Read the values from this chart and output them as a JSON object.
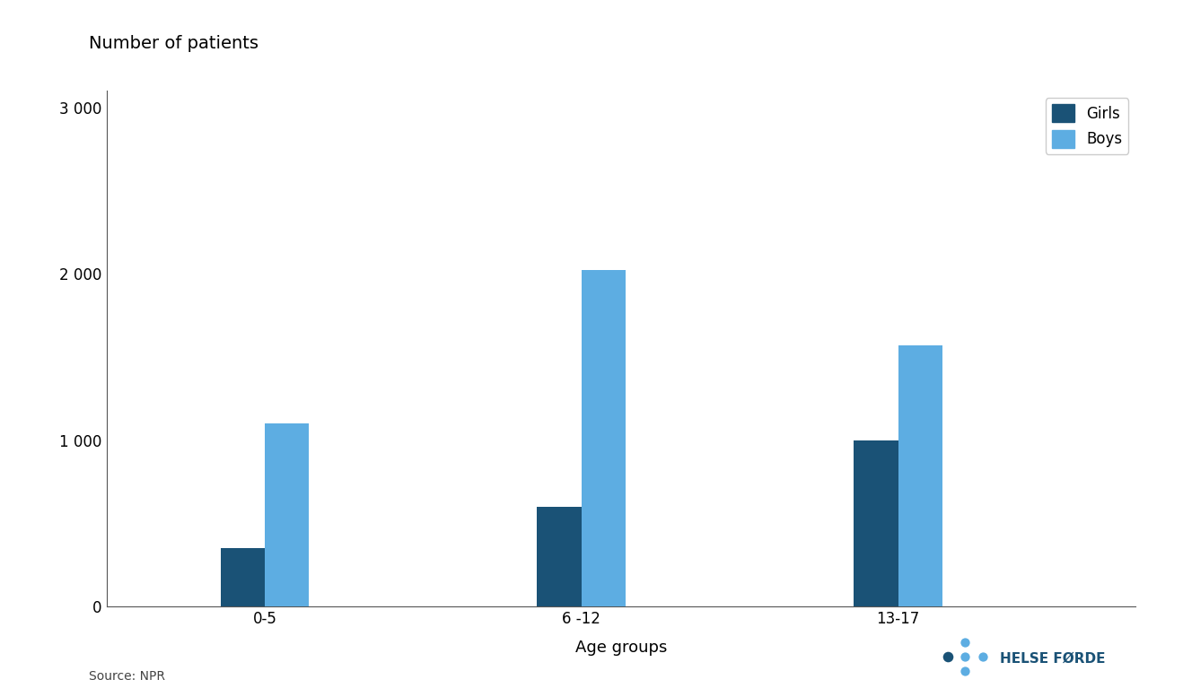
{
  "categories": [
    "0-5",
    "6 -12",
    "13-17"
  ],
  "girls_values": [
    350,
    600,
    1000
  ],
  "boys_values": [
    1100,
    2020,
    1570
  ],
  "girls_color": "#1a5276",
  "boys_color": "#5dade2",
  "title": "Number of patients",
  "xlabel": "Age groups",
  "ylim": [
    0,
    3100
  ],
  "yticks": [
    0,
    1000,
    2000,
    3000
  ],
  "ytick_labels": [
    "0",
    "1 000",
    "2 000",
    "3 000"
  ],
  "legend_labels": [
    "Girls",
    "Boys"
  ],
  "source_text": "Source: NPR",
  "background_color": "#ffffff",
  "bar_width": 0.28,
  "group_positions": [
    1.0,
    3.0,
    5.0
  ],
  "title_fontsize": 14,
  "axis_label_fontsize": 13,
  "tick_fontsize": 12,
  "legend_fontsize": 12,
  "source_fontsize": 10
}
